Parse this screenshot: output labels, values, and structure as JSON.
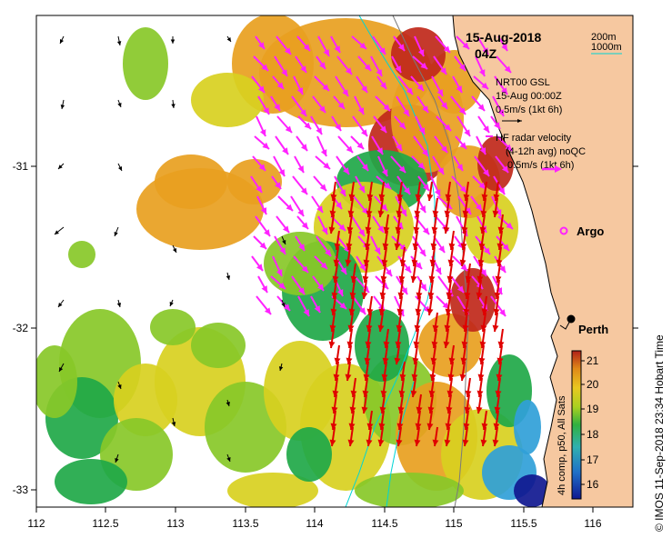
{
  "title": {
    "date": "15-Aug-2018",
    "time": "04Z"
  },
  "legend": {
    "isobath_200": "200m",
    "isobath_1000": "1000m",
    "isobath_200_color": "#7a7a7a",
    "isobath_1000_color": "#00d4d4",
    "model_line1": "NRT00 GSL",
    "model_line2": "15-Aug 00:00Z",
    "model_scale": "0.5m/s (1kt 6h)",
    "radar_line1": "HF radar velocity",
    "radar_line2": "(4-12h avg) noQC",
    "radar_scale": "0.5m/s (1kt 6h)",
    "radar_color": "#ff22ff",
    "radar_color_alt": "#e00000"
  },
  "places": {
    "argo": "Argo",
    "perth": "Perth"
  },
  "colorbar": {
    "label": "4h comp, p50, All Sats",
    "ticks": [
      "21",
      "20",
      "19",
      "18",
      "17",
      "16"
    ]
  },
  "credit": "© IMOS 11-Sep-2018 23:34 Hobart Time",
  "axes": {
    "x_ticks": [
      "112",
      "112.5",
      "113",
      "113.5",
      "114",
      "114.5",
      "115",
      "115.5",
      "116"
    ],
    "y_ticks": [
      "-31",
      "-32",
      "-33"
    ]
  },
  "colors": {
    "land": "#f6c8a0",
    "sst_21": "#c0281a",
    "sst_20": "#e8a020",
    "sst_19_5": "#d8d020",
    "sst_19": "#88c828",
    "sst_18": "#20a848",
    "sst_17": "#30a0d8",
    "sst_16": "#101890"
  }
}
